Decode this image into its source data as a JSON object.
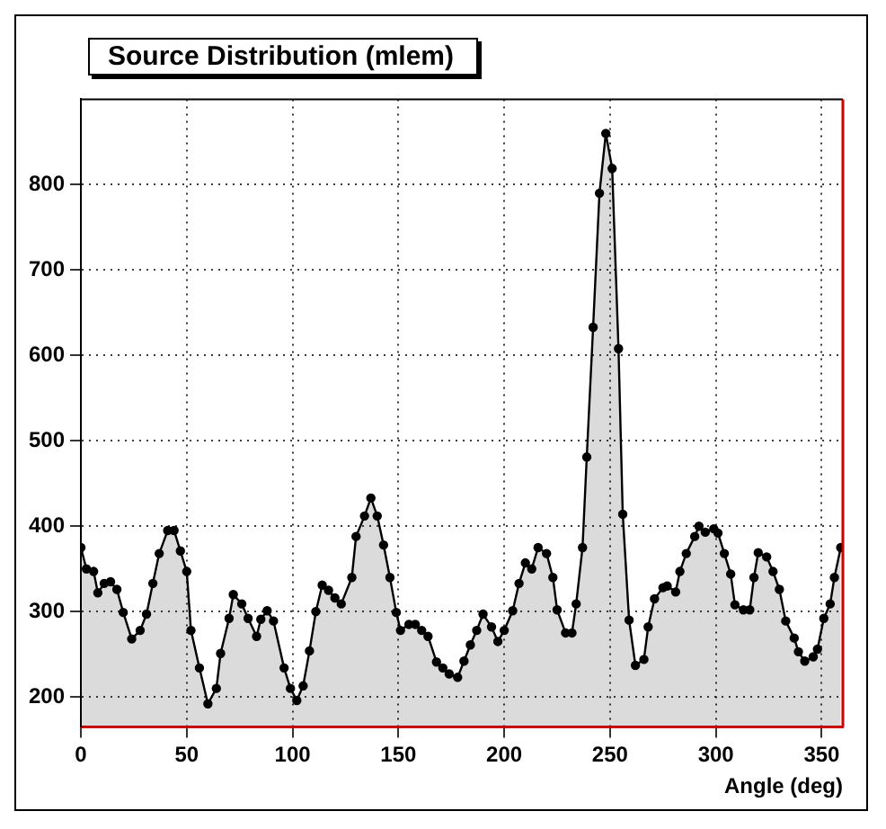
{
  "chart_data": {
    "type": "area",
    "title": "Source Distribution (mlem)",
    "xlabel": "Angle (deg)",
    "color": "#000000",
    "marker": "circle",
    "grid": true,
    "x": [
      0,
      2.6,
      6,
      8,
      11,
      14,
      17,
      20,
      24,
      28,
      31,
      34,
      37,
      41,
      44,
      47,
      50,
      52,
      56,
      60,
      64,
      66,
      70,
      72,
      76,
      79,
      83,
      85,
      88,
      91,
      96,
      99,
      102,
      105,
      108,
      111,
      114,
      117,
      120,
      123,
      128,
      130,
      134,
      137,
      140,
      143,
      146,
      149,
      151,
      155,
      158,
      161,
      164,
      168,
      171,
      174,
      178,
      181,
      184,
      187,
      190,
      194,
      197,
      200,
      204,
      207,
      210,
      213,
      216,
      220,
      223,
      225,
      229,
      232,
      234,
      237,
      239,
      242,
      245,
      248,
      251,
      254,
      256,
      259,
      262,
      266,
      268,
      271,
      275,
      277,
      281,
      283,
      286,
      290,
      292,
      295,
      299,
      301,
      304,
      307,
      309,
      313,
      316,
      318,
      320,
      324,
      327,
      330,
      333,
      337,
      339,
      342,
      346,
      348,
      351,
      354,
      356,
      359
    ],
    "values": [
      375,
      350,
      347,
      322,
      333,
      335,
      326,
      299,
      268,
      278,
      297,
      333,
      368,
      395,
      395,
      371,
      347,
      278,
      234,
      192,
      210,
      251,
      292,
      320,
      309,
      292,
      271,
      291,
      301,
      289,
      234,
      210,
      196,
      213,
      254,
      300,
      331,
      325,
      316,
      309,
      340,
      388,
      412,
      433,
      412,
      378,
      340,
      299,
      278,
      285,
      285,
      278,
      271,
      241,
      234,
      227,
      223,
      242,
      261,
      278,
      297,
      282,
      265,
      278,
      301,
      333,
      357,
      350,
      375,
      368,
      340,
      302,
      275,
      275,
      309,
      375,
      481,
      633,
      790,
      860,
      819,
      608,
      414,
      290,
      237,
      244,
      282,
      315,
      328,
      330,
      323,
      347,
      368,
      388,
      400,
      393,
      397,
      392,
      368,
      344,
      308,
      302,
      302,
      340,
      369,
      364,
      347,
      326,
      289,
      269,
      253,
      242,
      247,
      256,
      292,
      309,
      340,
      375
    ],
    "xlim": [
      0,
      360
    ],
    "ylim": [
      165,
      900
    ],
    "xticks": [
      0,
      50,
      100,
      150,
      200,
      250,
      300,
      350
    ],
    "yticks": [
      200,
      300,
      400,
      500,
      600,
      700,
      800
    ]
  }
}
